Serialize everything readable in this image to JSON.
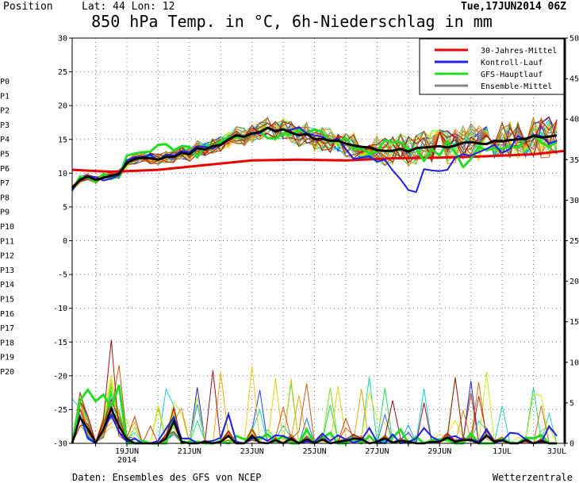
{
  "header": {
    "position_label": "Position",
    "lat_lon": "Lat: 44 Lon: 12",
    "run": "Tue,17JUN2014 06Z"
  },
  "footer": {
    "source": "Daten: Ensembles des GFS von NCEP",
    "brand": "Wetterzentrale"
  },
  "colors": {
    "climate": "#ee0000",
    "control": "#2020ee",
    "gfs_main": "#22dd22",
    "ens_mean_legend": "#888888",
    "ens_mean_line": "#000000",
    "members": [
      "#2020cc",
      "#1a3fdd",
      "#1f6ee8",
      "#1aa4e8",
      "#18c8e0",
      "#20d8b8",
      "#20d890",
      "#22dd55",
      "#40dd20",
      "#7ae020",
      "#c6e820",
      "#f0e020",
      "#f2c818",
      "#eea518",
      "#ea8c18",
      "#e07018",
      "#d45a14",
      "#c84010",
      "#b52a10",
      "#a81a10",
      "#a01010"
    ]
  },
  "chart_data": {
    "type": "line",
    "title": "850 hPa Temp. in °C, 6h-Niederschlag in mm",
    "ylim_left": [
      -30,
      30
    ],
    "ylim_right": [
      0,
      50
    ],
    "yticks_left": [
      -30,
      -25,
      -20,
      -15,
      -10,
      -5,
      0,
      5,
      10,
      15,
      20,
      25,
      30
    ],
    "yticks_right": [
      0,
      5,
      10,
      15,
      20,
      25,
      30,
      35,
      40,
      45,
      50
    ],
    "x_range_days": [
      17.25,
      33.0
    ],
    "xticks": [
      {
        "day": 19,
        "label": "19JUN",
        "label2": "2014"
      },
      {
        "day": 21,
        "label": "21JUN"
      },
      {
        "day": 23,
        "label": "23JUN"
      },
      {
        "day": 25,
        "label": "25JUN"
      },
      {
        "day": 27,
        "label": "27JUN"
      },
      {
        "day": 29,
        "label": "29JUN"
      },
      {
        "day": 31,
        "label": "1JUL"
      },
      {
        "day": 33,
        "label": "3JUL"
      }
    ],
    "grid": true,
    "legend": {
      "placement": "top-right",
      "entries": [
        {
          "label": "30-Jahres-Mittel",
          "color_key": "climate"
        },
        {
          "label": "Kontroll-Lauf",
          "color_key": "control"
        },
        {
          "label": "GFS-Hauptlauf",
          "color_key": "gfs_main"
        },
        {
          "label": "Ensemble-Mittel",
          "color_key": "ens_mean_legend"
        }
      ]
    },
    "member_labels": [
      "P0",
      "P1",
      "P2",
      "P3",
      "P4",
      "P5",
      "P6",
      "P7",
      "P8",
      "P9",
      "P10",
      "P11",
      "P12",
      "P13",
      "P14",
      "P15",
      "P16",
      "P17",
      "P18",
      "P19",
      "P20"
    ],
    "temp_series": {
      "climate_days": [
        17.25,
        18.5,
        20,
        21.5,
        23,
        24.5,
        26,
        27.5,
        29,
        30.5,
        32,
        33
      ],
      "climate_values": [
        10.5,
        10.2,
        10.5,
        11.2,
        11.9,
        12.0,
        11.9,
        12.2,
        12.3,
        12.5,
        12.8,
        13.3
      ],
      "ensemble_mean": [
        7.8,
        9.0,
        9.5,
        9.0,
        9.3,
        9.6,
        9.9,
        11.5,
        12.1,
        12.3,
        12.2,
        12.0,
        12.4,
        12.4,
        13.0,
        12.8,
        13.7,
        13.5,
        14.0,
        14.2,
        15.0,
        15.6,
        15.4,
        15.9,
        16.1,
        16.7,
        16.2,
        16.5,
        16.0,
        15.6,
        15.8,
        15.0,
        15.1,
        14.8,
        14.8,
        14.4,
        14.1,
        13.9,
        13.8,
        13.4,
        13.3,
        13.3,
        13.6,
        13.2,
        13.7,
        13.8,
        13.9,
        14.0,
        13.8,
        14.1,
        14.5,
        14.6,
        14.4,
        14.3,
        14.8,
        14.7,
        14.9,
        15.0,
        15.1,
        15.5,
        15.3,
        15.4,
        15.6
      ],
      "control": [
        7.5,
        9.1,
        9.6,
        9.4,
        8.9,
        9.2,
        9.7,
        11.9,
        12.4,
        12.4,
        12.7,
        11.9,
        12.8,
        12.6,
        13.3,
        13.1,
        14.0,
        13.9,
        13.6,
        14.3,
        15.1,
        15.6,
        15.3,
        15.8,
        15.9,
        16.8,
        16.3,
        16.4,
        16.4,
        16.8,
        15.9,
        15.6,
        15.4,
        14.7,
        15.1,
        13.5,
        12.1,
        12.3,
        12.5,
        11.7,
        12.0,
        10.4,
        9.1,
        7.5,
        7.2,
        10.6,
        10.4,
        10.3,
        10.5,
        12.3,
        12.8,
        12.6,
        13.1,
        13.6,
        14.2,
        13.0,
        13.6,
        15.5,
        14.9,
        15.7,
        15.5,
        14.4,
        14.8
      ],
      "gfs_main": [
        7.4,
        9.5,
        9.3,
        8.7,
        9.9,
        9.2,
        9.5,
        12.6,
        12.9,
        13.1,
        13.2,
        14.2,
        14.3,
        13.4,
        14.0,
        13.9,
        12.3,
        14.0,
        14.0,
        14.7,
        15.3,
        15.3,
        15.3,
        15.8,
        16.1,
        15.2,
        15.1,
        15.9,
        15.7,
        16.4,
        15.9,
        16.5,
        16.1,
        14.6,
        14.7,
        15.2,
        13.6,
        13.6,
        13.0,
        13.2,
        14.9,
        14.6,
        14.6,
        13.5,
        13.6,
        11.8,
        13.5,
        12.6,
        14.7,
        13.1,
        10.9,
        12.1,
        13.9,
        13.4,
        13.7,
        13.6,
        14.0,
        13.8,
        15.1,
        15.6,
        14.5,
        13.9,
        14.8
      ]
    },
    "precip_series": {
      "ensemble_mean": [
        0.0,
        3.2,
        1.8,
        0.1,
        1.7,
        4.3,
        2.1,
        0.5,
        0.0,
        0.0,
        0.0,
        0.0,
        0.6,
        2.7,
        0.2,
        0.0,
        0.0,
        0.2,
        0.0,
        0.2,
        0.9,
        0.0,
        0.0,
        0.9,
        0.1,
        0.0,
        0.4,
        0.0,
        0.6,
        0.0,
        0.5,
        0.0,
        0.5,
        0.0,
        0.2,
        0.3,
        0.6,
        0.5,
        0.0,
        0.2,
        0.6,
        0.1,
        0.3,
        0.2,
        0.0,
        0.0,
        0.2,
        0.2,
        0.7,
        0.2,
        0.4,
        0.4,
        0.0,
        1.0,
        0.2,
        0.4,
        0.0,
        0.0,
        0.4,
        0.0,
        0.3,
        0.0,
        0.0
      ],
      "control": [
        0.0,
        3.4,
        0.6,
        0.0,
        1.7,
        3.5,
        1.4,
        0.2,
        0.6,
        0.0,
        0.0,
        0.3,
        1.8,
        3.2,
        0.6,
        0.6,
        0.0,
        0.2,
        0.3,
        0.7,
        3.6,
        0.2,
        0.0,
        0.6,
        0.8,
        0.3,
        1.0,
        0.9,
        0.5,
        0.1,
        0.2,
        0.2,
        1.2,
        0.3,
        1.0,
        0.5,
        0.1,
        0.4,
        1.9,
        0.2,
        0.0,
        1.1,
        0.0,
        0.2,
        0.6,
        1.9,
        0.8,
        0.3,
        0.7,
        0.9,
        0.4,
        0.5,
        0.2,
        1.7,
        0.1,
        0.3,
        1.3,
        1.2,
        0.5,
        0.0,
        0.1,
        2.1,
        0.9
      ],
      "gfs_main": [
        0.0,
        5.3,
        6.6,
        5.2,
        6.0,
        4.4,
        7.2,
        0.0,
        0.0,
        0.3,
        0.0,
        0.0,
        0.0,
        3.2,
        0.0,
        0.2,
        0.2,
        0.0,
        0.0,
        0.3,
        0.0,
        0.9,
        0.5,
        0.6,
        0.6,
        1.1,
        0.3,
        0.9,
        0.0,
        0.0,
        1.7,
        0.0,
        0.6,
        1.3,
        0.0,
        0.0,
        0.5,
        0.0,
        0.9,
        0.0,
        0.1,
        0.7,
        1.7,
        0.0,
        0.8,
        0.0,
        0.4,
        0.5,
        0.4,
        0.0,
        0.0,
        1.2,
        0.0,
        0.0,
        0.0,
        0.6,
        0.1,
        0.0,
        0.7,
        0.6,
        1.0,
        0.0,
        0.0
      ]
    }
  }
}
